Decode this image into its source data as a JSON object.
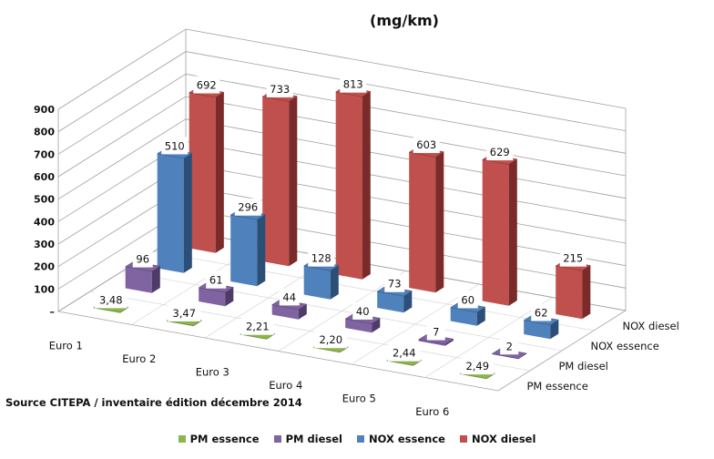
{
  "chart_data": {
    "type": "bar",
    "title": "",
    "unit_label": "(mg/km)",
    "categories": [
      "Euro 1",
      "Euro 2",
      "Euro 3",
      "Euro 4",
      "Euro 5",
      "Euro 6"
    ],
    "y_tick_labels": [
      "–",
      "100",
      "200",
      "300",
      "400",
      "500",
      "600",
      "700",
      "800",
      "900"
    ],
    "ylim": [
      0,
      900
    ],
    "legend_position": "bottom",
    "series": [
      {
        "name": "PM essence",
        "color": "#8cb450",
        "dark": "#5f8032",
        "values": [
          3.48,
          3.47,
          2.21,
          2.2,
          2.44,
          2.49
        ],
        "labels": [
          "3,48",
          "3,47",
          "2,21",
          "2,20",
          "2,44",
          "2,49"
        ]
      },
      {
        "name": "PM diesel",
        "color": "#8064a2",
        "dark": "#4f3b68",
        "values": [
          96,
          61,
          44,
          40,
          7,
          2
        ],
        "labels": [
          "96",
          "61",
          "44",
          "40",
          "7",
          "2"
        ]
      },
      {
        "name": "NOX essence",
        "color": "#4f81bd",
        "dark": "#2c4f78",
        "values": [
          510,
          296,
          128,
          73,
          60,
          62
        ],
        "labels": [
          "510",
          "296",
          "128",
          "73",
          "60",
          "62"
        ]
      },
      {
        "name": "NOX diesel",
        "color": "#c0504d",
        "dark": "#7a2a28",
        "values": [
          692,
          733,
          813,
          603,
          629,
          215
        ],
        "labels": [
          "692",
          "733",
          "813",
          "603",
          "629",
          "215"
        ]
      }
    ],
    "grid": true
  },
  "source": "Source CITEPA / inventaire édition décembre 2014"
}
